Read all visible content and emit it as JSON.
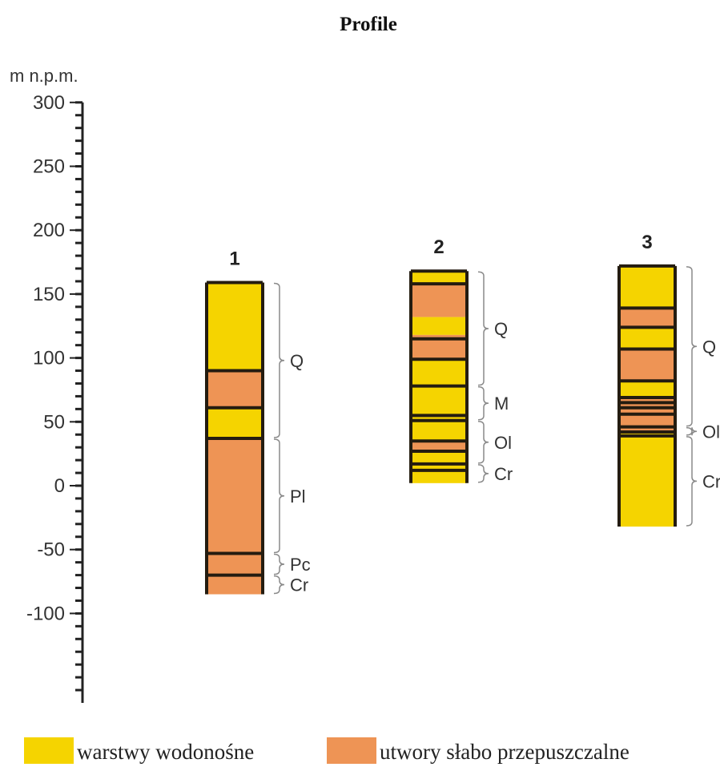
{
  "title": "Profile",
  "axis": {
    "unit_label": "m n.p.m.",
    "ticks": [
      {
        "label": "300",
        "value": 300
      },
      {
        "label": "250",
        "value": 250
      },
      {
        "label": "200",
        "value": 200
      },
      {
        "label": "150",
        "value": 150
      },
      {
        "label": "100",
        "value": 100
      },
      {
        "label": "50",
        "value": 50
      },
      {
        "label": "0",
        "value": 0
      },
      {
        "label": "-50",
        "value": -50
      },
      {
        "label": "-100",
        "value": -100
      }
    ],
    "range": [
      -170,
      300
    ],
    "minor_step": 10
  },
  "legend": [
    {
      "label": "warstwy wodonośne",
      "color": "#f5d400",
      "type": "aquifer"
    },
    {
      "label": "utwory słabo przepuszczalne",
      "color": "#ee9455",
      "type": "aquitard"
    }
  ],
  "colors": {
    "aquifer": "#f5d400",
    "aquitard": "#ee9455",
    "outline": "#241c10",
    "brace": "#8a8a8a"
  },
  "columns": [
    {
      "label": "1",
      "top": 159,
      "bottom": -85,
      "layers": [
        {
          "type": "aquifer",
          "from": 159,
          "to": 90
        },
        {
          "type": "aquitard",
          "from": 90,
          "to": 61
        },
        {
          "type": "aquifer",
          "from": 61,
          "to": 37
        },
        {
          "type": "aquitard",
          "from": 37,
          "to": -85
        }
      ],
      "boundaries": [
        90,
        61,
        37,
        -53,
        -70
      ],
      "units": [
        {
          "label": "Q",
          "from": 159,
          "to": 37
        },
        {
          "label": "Pl",
          "from": 37,
          "to": -53
        },
        {
          "label": "Pc",
          "from": -53,
          "to": -70
        },
        {
          "label": "Cr",
          "from": -70,
          "to": -85
        }
      ]
    },
    {
      "label": "2",
      "top": 168,
      "bottom": 2,
      "layers": [
        {
          "type": "aquifer",
          "from": 168,
          "to": 158
        },
        {
          "type": "aquitard",
          "from": 158,
          "to": 132
        },
        {
          "type": "aquifer",
          "from": 132,
          "to": 118
        },
        {
          "type": "aquitard",
          "from": 118,
          "to": 98
        },
        {
          "type": "aquifer",
          "from": 98,
          "to": 35
        },
        {
          "type": "aquitard",
          "from": 35,
          "to": 27
        },
        {
          "type": "aquifer",
          "from": 27,
          "to": 2
        }
      ],
      "boundaries": [
        158,
        115,
        99,
        78,
        55,
        51,
        35,
        27,
        17,
        12
      ],
      "units": [
        {
          "label": "Q",
          "from": 168,
          "to": 78
        },
        {
          "label": "M",
          "from": 78,
          "to": 51
        },
        {
          "label": "Ol",
          "from": 51,
          "to": 17
        },
        {
          "label": "Cr",
          "from": 17,
          "to": 2
        }
      ]
    },
    {
      "label": "3",
      "top": 172,
      "bottom": -32,
      "layers": [
        {
          "type": "aquifer",
          "from": 172,
          "to": 139
        },
        {
          "type": "aquitard",
          "from": 139,
          "to": 124
        },
        {
          "type": "aquifer",
          "from": 124,
          "to": 107
        },
        {
          "type": "aquitard",
          "from": 107,
          "to": 82
        },
        {
          "type": "aquifer",
          "from": 82,
          "to": 69
        },
        {
          "type": "aquitard",
          "from": 69,
          "to": 42
        },
        {
          "type": "aquifer",
          "from": 42,
          "to": -32
        }
      ],
      "boundaries": [
        139,
        124,
        107,
        82,
        69,
        65,
        61,
        56,
        46,
        42,
        39
      ],
      "units": [
        {
          "label": "Q",
          "from": 172,
          "to": 46
        },
        {
          "label": "Ol",
          "from": 46,
          "to": 39
        },
        {
          "label": "Cr",
          "from": 39,
          "to": -32
        }
      ]
    }
  ]
}
